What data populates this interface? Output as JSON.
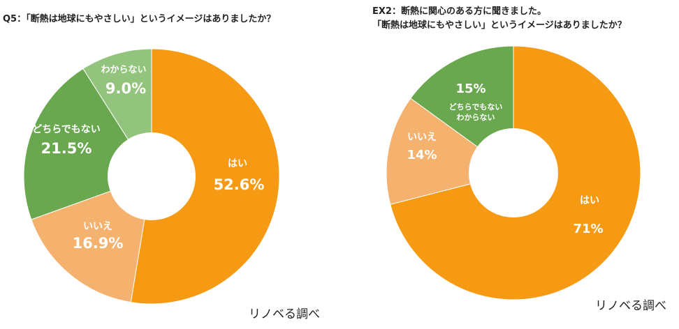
{
  "chart_data": [
    {
      "type": "donut",
      "title": "Q5：「断熱は地球にもやさしい」というイメージはありましたか？",
      "source": "リノベる調べ",
      "categories": [
        "はい",
        "いいえ",
        "どちらでもない",
        "わからない"
      ],
      "values": [
        52.6,
        16.9,
        21.5,
        9.0
      ],
      "value_labels": [
        "52.6%",
        "16.9%",
        "21.5%",
        "9.0%"
      ],
      "colors": [
        "#f79a13",
        "#f4b26e",
        "#6aa84f",
        "#93c47d"
      ]
    },
    {
      "type": "donut",
      "title_lines": [
        "EX2：断熱に関心のある方に聞きました。",
        "「断熱は地球にもやさしい」というイメージはありましたか？"
      ],
      "source": "リノベる調べ",
      "categories": [
        "はい",
        "いいえ",
        "どちらでもない\nわからない"
      ],
      "values": [
        71,
        14,
        15
      ],
      "value_labels": [
        "71%",
        "14%",
        "15%"
      ],
      "colors": [
        "#f79a13",
        "#f4b26e",
        "#6aa84f"
      ]
    }
  ]
}
